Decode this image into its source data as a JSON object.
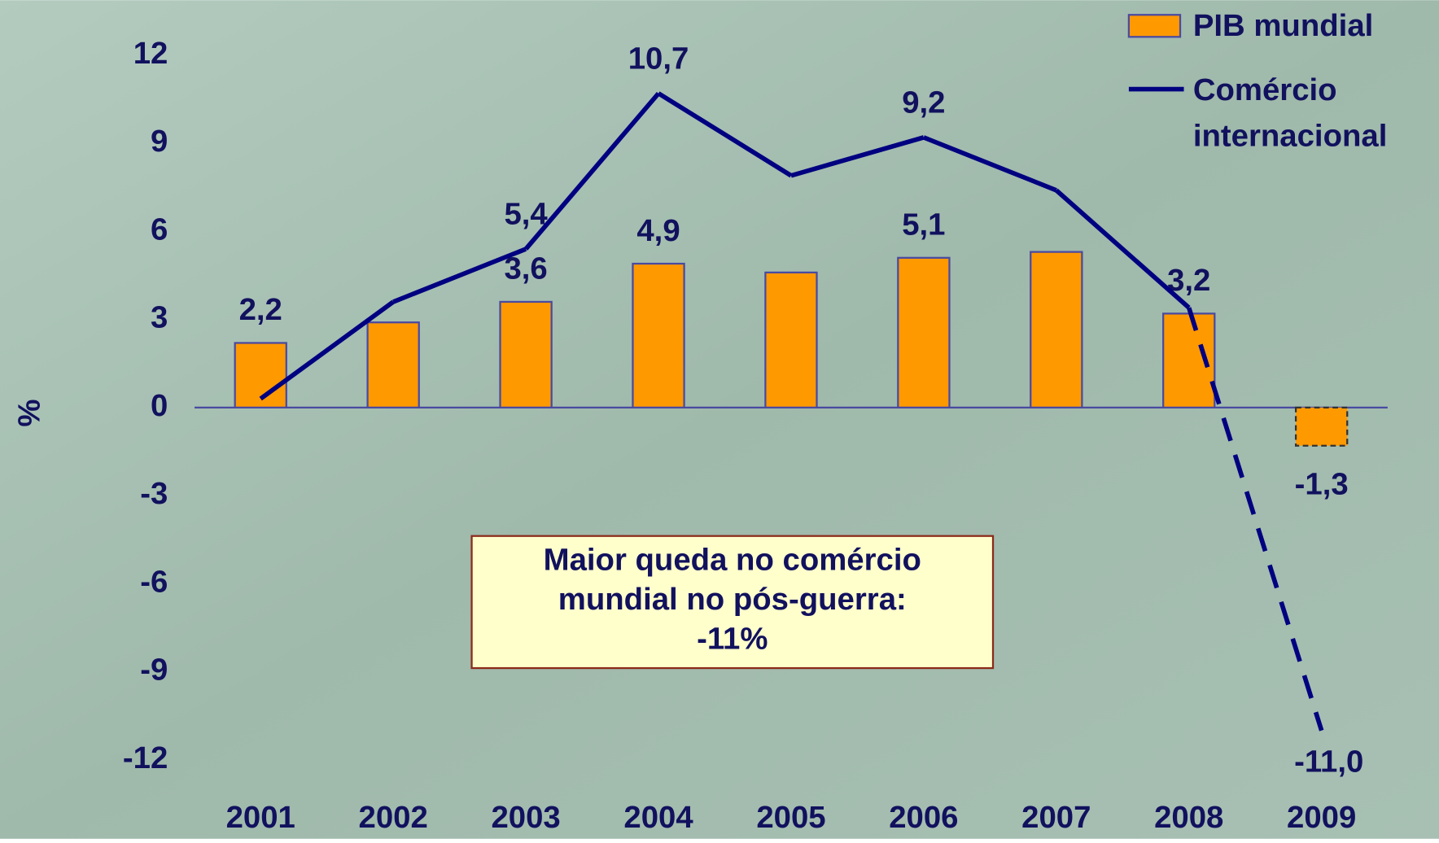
{
  "chart_data": {
    "type": "bar_line",
    "y_label": "%",
    "categories": [
      "2001",
      "2002",
      "2003",
      "2004",
      "2005",
      "2006",
      "2007",
      "2008",
      "2009"
    ],
    "ylim": [
      -12,
      12
    ],
    "yticks": [
      12,
      9,
      6,
      3,
      0,
      -3,
      -6,
      -9,
      -12
    ],
    "dashed": [
      false,
      false,
      false,
      false,
      false,
      false,
      false,
      false,
      true
    ],
    "series": [
      {
        "name": "PIB mundial",
        "type": "bar",
        "color": "#ff9900",
        "values": [
          2.2,
          2.9,
          3.6,
          4.9,
          4.6,
          5.1,
          5.3,
          3.2,
          -1.3
        ],
        "value_labels": [
          "2,2",
          null,
          "3,6",
          "4,9",
          null,
          "5,1",
          null,
          "3,2",
          "-1,3"
        ]
      },
      {
        "name": "Comércio internacional",
        "type": "line",
        "color": "#000080",
        "values": [
          0.3,
          3.6,
          5.4,
          10.7,
          7.9,
          9.2,
          7.4,
          3.4,
          -11.0
        ],
        "value_labels": [
          null,
          null,
          "5,4",
          "10,7",
          null,
          "9,2",
          null,
          null,
          "-11,0"
        ]
      }
    ],
    "annotation": [
      "Maior queda no comércio",
      "mundial no pós-guerra:",
      "-11%"
    ]
  }
}
